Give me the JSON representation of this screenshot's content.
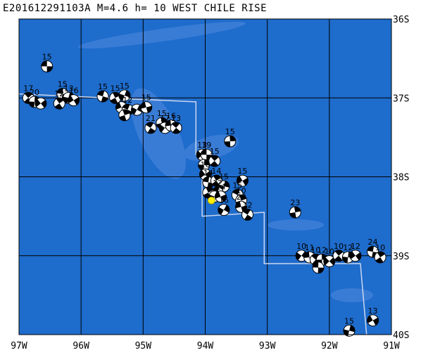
{
  "title": "E201612291103A M=4.6 h= 10 WEST CHILE RISE",
  "map": {
    "lon_range": [
      -97,
      -91
    ],
    "lat_range": [
      -40,
      -36
    ],
    "lon_ticks": [
      {
        "value": -97,
        "label": "97W"
      },
      {
        "value": -96,
        "label": "96W"
      },
      {
        "value": -95,
        "label": "95W"
      },
      {
        "value": -94,
        "label": "94W"
      },
      {
        "value": -93,
        "label": "93W"
      },
      {
        "value": -92,
        "label": "92W"
      },
      {
        "value": -91,
        "label": "91W"
      }
    ],
    "lat_ticks": [
      {
        "value": -36,
        "label": "36S"
      },
      {
        "value": -37,
        "label": "37S"
      },
      {
        "value": -38,
        "label": "38S"
      },
      {
        "value": -39,
        "label": "39S"
      },
      {
        "value": -40,
        "label": "40S"
      }
    ],
    "colors": {
      "ocean": "#1e6ccc",
      "ridge": "#4c88dd",
      "plate_boundary": "#ccd7ee",
      "grid": "#000000",
      "event": "#ffee00"
    },
    "event_marker": {
      "lon": -93.9,
      "lat": -38.3,
      "type": "yellow-star"
    },
    "plate_boundary": [
      [
        -97,
        -36.95
      ],
      [
        -94.15,
        -37.05
      ],
      [
        -94.15,
        -37.72
      ],
      [
        -94.05,
        -37.72
      ],
      [
        -94.05,
        -38.5
      ],
      [
        -93.05,
        -38.45
      ],
      [
        -93.05,
        -39.1
      ],
      [
        -91.5,
        -39.1
      ],
      [
        -91.4,
        -40
      ]
    ],
    "mechanisms": [
      {
        "lon": -96.55,
        "lat": -36.6,
        "depth": "15"
      },
      {
        "lon": -96.85,
        "lat": -37.0,
        "depth": "17"
      },
      {
        "lon": -96.75,
        "lat": -37.05,
        "depth": "20"
      },
      {
        "lon": -96.65,
        "lat": -37.07,
        "depth": ""
      },
      {
        "lon": -96.3,
        "lat": -36.95,
        "depth": "15"
      },
      {
        "lon": -96.35,
        "lat": -37.07,
        "depth": "12"
      },
      {
        "lon": -96.2,
        "lat": -37.0,
        "depth": "13"
      },
      {
        "lon": -96.12,
        "lat": -37.03,
        "depth": "16"
      },
      {
        "lon": -95.65,
        "lat": -36.98,
        "depth": "15"
      },
      {
        "lon": -95.45,
        "lat": -37.0,
        "depth": "15"
      },
      {
        "lon": -95.3,
        "lat": -36.97,
        "depth": "15"
      },
      {
        "lon": -95.35,
        "lat": -37.12,
        "depth": ""
      },
      {
        "lon": -95.25,
        "lat": -37.15,
        "depth": "12"
      },
      {
        "lon": -95.3,
        "lat": -37.22,
        "depth": ""
      },
      {
        "lon": -95.1,
        "lat": -37.15,
        "depth": ""
      },
      {
        "lon": -94.95,
        "lat": -37.12,
        "depth": "15"
      },
      {
        "lon": -94.88,
        "lat": -37.38,
        "depth": "21"
      },
      {
        "lon": -94.7,
        "lat": -37.32,
        "depth": "15"
      },
      {
        "lon": -94.65,
        "lat": -37.38,
        "depth": "17"
      },
      {
        "lon": -94.55,
        "lat": -37.35,
        "depth": "16"
      },
      {
        "lon": -94.47,
        "lat": -37.38,
        "depth": "13"
      },
      {
        "lon": -93.6,
        "lat": -37.55,
        "depth": "15"
      },
      {
        "lon": -94.05,
        "lat": -37.72,
        "depth": "13"
      },
      {
        "lon": -93.98,
        "lat": -37.72,
        "depth": "19"
      },
      {
        "lon": -93.85,
        "lat": -37.8,
        "depth": "15"
      },
      {
        "lon": -94.02,
        "lat": -37.85,
        "depth": ""
      },
      {
        "lon": -94.0,
        "lat": -37.97,
        "depth": "16"
      },
      {
        "lon": -93.95,
        "lat": -38.07,
        "depth": "14"
      },
      {
        "lon": -93.82,
        "lat": -38.05,
        "depth": "14"
      },
      {
        "lon": -93.7,
        "lat": -38.12,
        "depth": "15"
      },
      {
        "lon": -93.4,
        "lat": -38.05,
        "depth": "15"
      },
      {
        "lon": -93.8,
        "lat": -38.2,
        "depth": "12"
      },
      {
        "lon": -93.95,
        "lat": -38.2,
        "depth": ""
      },
      {
        "lon": -93.85,
        "lat": -38.25,
        "depth": "10"
      },
      {
        "lon": -93.75,
        "lat": -38.25,
        "depth": "14"
      },
      {
        "lon": -93.48,
        "lat": -38.23,
        "depth": "15"
      },
      {
        "lon": -93.42,
        "lat": -38.3,
        "depth": "10"
      },
      {
        "lon": -93.7,
        "lat": -38.42,
        "depth": "16"
      },
      {
        "lon": -93.42,
        "lat": -38.38,
        "depth": "20"
      },
      {
        "lon": -93.32,
        "lat": -38.48,
        "depth": "12"
      },
      {
        "lon": -92.55,
        "lat": -38.45,
        "depth": "23"
      },
      {
        "lon": -92.45,
        "lat": -39.0,
        "depth": "10"
      },
      {
        "lon": -92.32,
        "lat": -39.02,
        "depth": "11"
      },
      {
        "lon": -92.22,
        "lat": -39.05,
        "depth": "10"
      },
      {
        "lon": -92.12,
        "lat": -39.05,
        "depth": "12"
      },
      {
        "lon": -92.0,
        "lat": -39.07,
        "depth": "10"
      },
      {
        "lon": -92.18,
        "lat": -39.15,
        "depth": ""
      },
      {
        "lon": -91.85,
        "lat": -39.0,
        "depth": "10"
      },
      {
        "lon": -91.7,
        "lat": -39.02,
        "depth": "12"
      },
      {
        "lon": -91.58,
        "lat": -39.0,
        "depth": "12"
      },
      {
        "lon": -91.3,
        "lat": -38.95,
        "depth": "24"
      },
      {
        "lon": -91.18,
        "lat": -39.02,
        "depth": "10"
      },
      {
        "lon": -91.68,
        "lat": -39.95,
        "depth": "15"
      },
      {
        "lon": -91.3,
        "lat": -39.82,
        "depth": "13"
      }
    ]
  }
}
